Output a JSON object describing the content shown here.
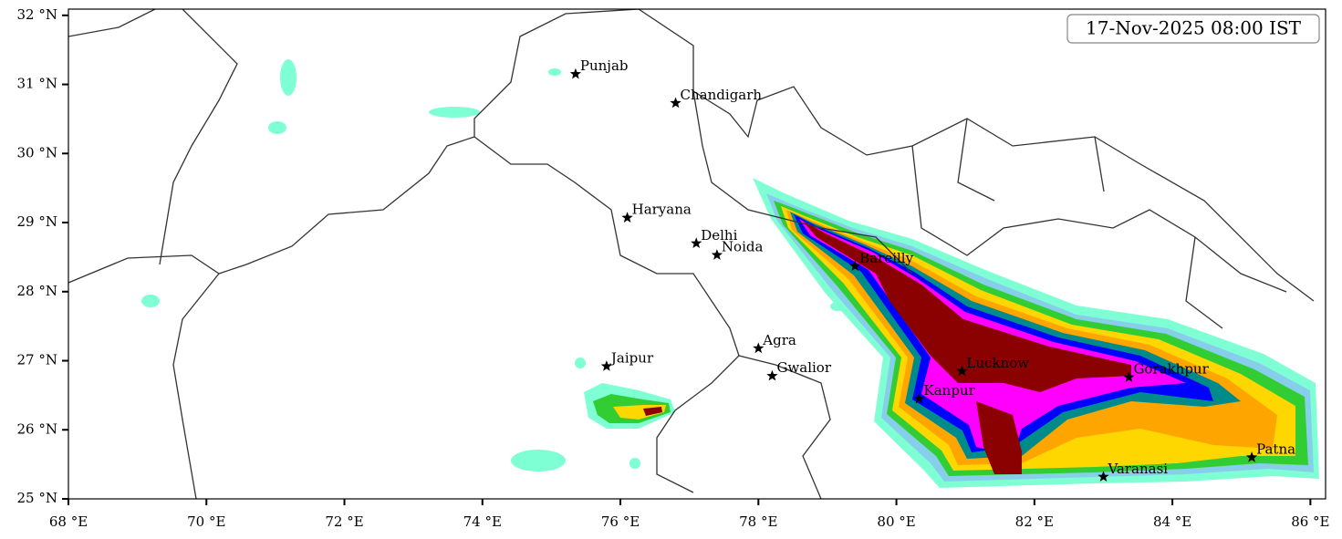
{
  "map": {
    "timestamp": "17-Nov-2025 08:00 IST",
    "xlim": [
      68,
      86.22
    ],
    "ylim": [
      25,
      32.09
    ],
    "xticks": [
      {
        "value": 68,
        "label": "68 °E"
      },
      {
        "value": 70,
        "label": "70 °E"
      },
      {
        "value": 72,
        "label": "72 °E"
      },
      {
        "value": 74,
        "label": "74 °E"
      },
      {
        "value": 76,
        "label": "76 °E"
      },
      {
        "value": 78,
        "label": "78 °E"
      },
      {
        "value": 80,
        "label": "80 °E"
      },
      {
        "value": 82,
        "label": "82 °E"
      },
      {
        "value": 84,
        "label": "84 °E"
      },
      {
        "value": 86,
        "label": "86 °E"
      }
    ],
    "yticks": [
      {
        "value": 25,
        "label": "25 °N"
      },
      {
        "value": 26,
        "label": "26 °N"
      },
      {
        "value": 27,
        "label": "27 °N"
      },
      {
        "value": 28,
        "label": "28 °N"
      },
      {
        "value": 29,
        "label": "29 °N"
      },
      {
        "value": 30,
        "label": "30 °N"
      },
      {
        "value": 31,
        "label": "31 °N"
      },
      {
        "value": 32,
        "label": "32 °N"
      }
    ],
    "cities": [
      {
        "name": "Punjab",
        "lon": 75.35,
        "lat": 31.15
      },
      {
        "name": "Chandigarh",
        "lon": 76.8,
        "lat": 30.73
      },
      {
        "name": "Haryana",
        "lon": 76.1,
        "lat": 29.07
      },
      {
        "name": "Delhi",
        "lon": 77.1,
        "lat": 28.7
      },
      {
        "name": "Noida",
        "lon": 77.4,
        "lat": 28.53
      },
      {
        "name": "Bareilly",
        "lon": 79.4,
        "lat": 28.37
      },
      {
        "name": "Agra",
        "lon": 78.0,
        "lat": 27.18
      },
      {
        "name": "Jaipur",
        "lon": 75.8,
        "lat": 26.92
      },
      {
        "name": "Gwalior",
        "lon": 78.2,
        "lat": 26.78
      },
      {
        "name": "Lucknow",
        "lon": 80.95,
        "lat": 26.85
      },
      {
        "name": "Kanpur",
        "lon": 80.33,
        "lat": 26.45
      },
      {
        "name": "Gorakhpur",
        "lon": 83.37,
        "lat": 26.76
      },
      {
        "name": "Varanasi",
        "lon": 83.0,
        "lat": 25.32
      },
      {
        "name": "Patna",
        "lon": 85.15,
        "lat": 25.6
      }
    ]
  }
}
